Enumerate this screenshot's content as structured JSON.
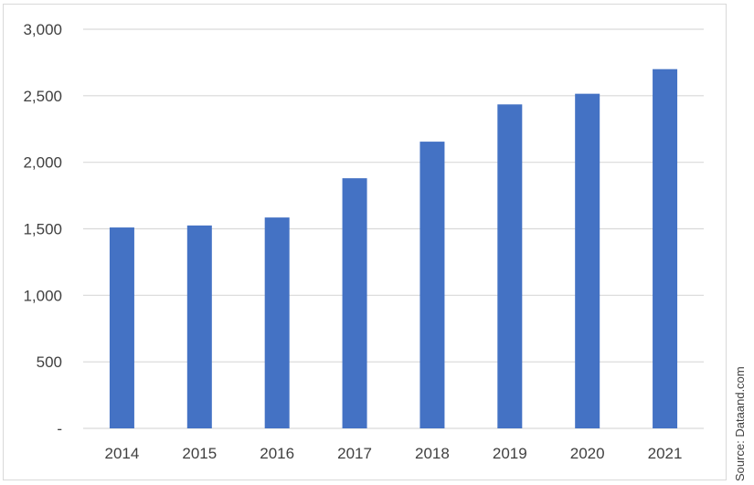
{
  "chart_data": {
    "type": "bar",
    "categories": [
      "2014",
      "2015",
      "2016",
      "2017",
      "2018",
      "2019",
      "2020",
      "2021"
    ],
    "values": [
      1510,
      1525,
      1585,
      1880,
      2155,
      2435,
      2515,
      2700
    ],
    "title": "",
    "xlabel": "",
    "ylabel": "",
    "ylim": [
      0,
      3000
    ],
    "yticks": [
      0,
      500,
      1000,
      1500,
      2000,
      2500,
      3000
    ],
    "ytick_labels": [
      "-",
      "500",
      "1,000",
      "1,500",
      "2,000",
      "2,500",
      "3,000"
    ],
    "grid": "horizontal",
    "bar_color": "#4472c4",
    "gridline_color": "#d9d9d9",
    "text_color": "#404040"
  },
  "source_note": "Source: Dataand.com"
}
